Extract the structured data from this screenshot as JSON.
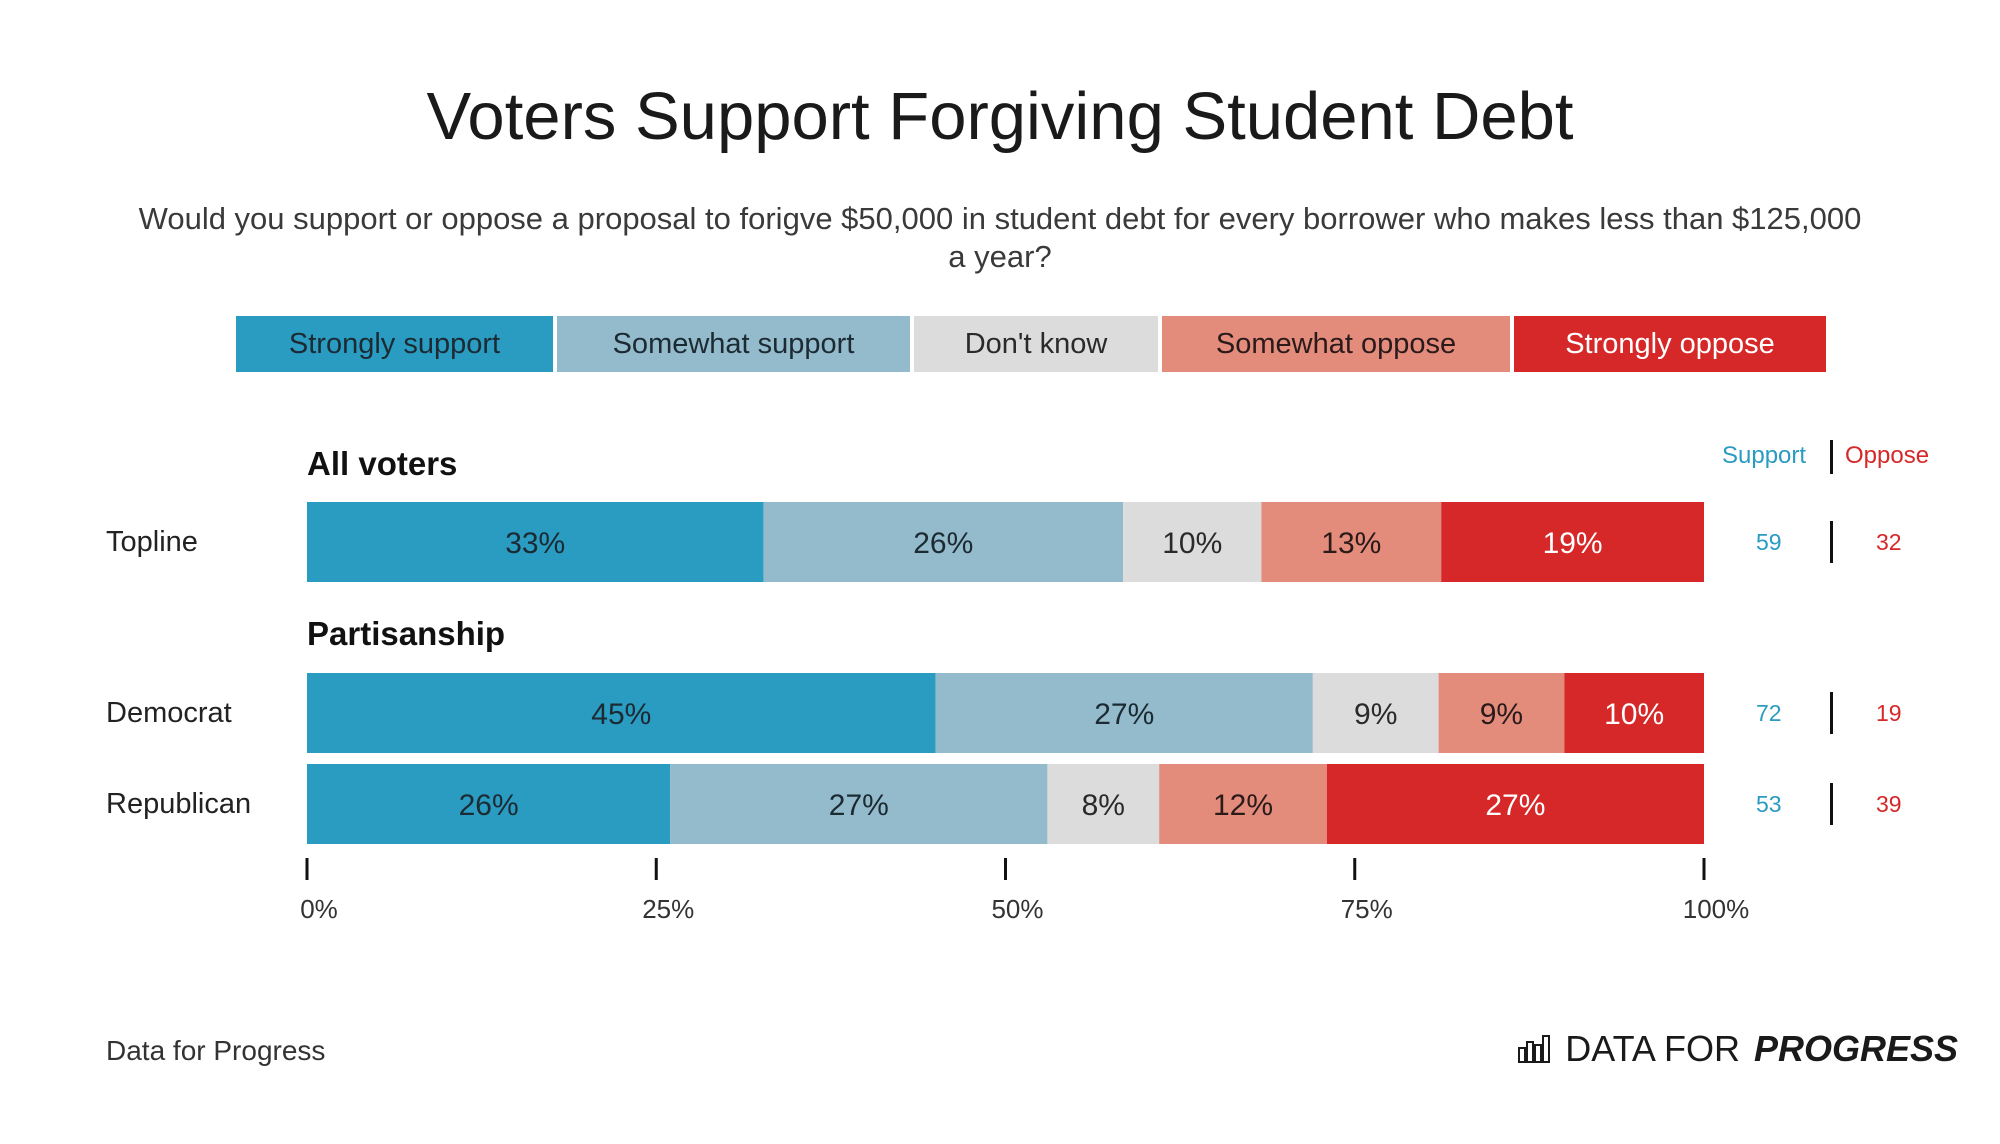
{
  "title": "Voters Support Forgiving Student Debt",
  "subtitle": "Would you support or oppose a proposal to forigve $50,000 in student debt for every borrower who makes less than $125,000 a year?",
  "legend": [
    {
      "label": "Strongly support",
      "color": "#2a9bc1",
      "text_color": "#1c2b33"
    },
    {
      "label": "Somewhat support",
      "color": "#94bbcc",
      "text_color": "#1c2b33"
    },
    {
      "label": "Don't know",
      "color": "#dcdcdc",
      "text_color": "#2a2a2a"
    },
    {
      "label": "Somewhat oppose",
      "color": "#e48c7c",
      "text_color": "#2a1a1a"
    },
    {
      "label": "Strongly oppose",
      "color": "#d62828",
      "text_color": "#ffffff"
    }
  ],
  "columns": {
    "support": "Support",
    "separator": "|",
    "oppose": "Oppose",
    "support_color": "#2a9bc1",
    "oppose_color": "#d62828"
  },
  "groups": [
    {
      "label": "All voters",
      "rows": [
        0
      ]
    },
    {
      "label": "Partisanship",
      "rows": [
        1,
        2
      ]
    }
  ],
  "chart_data": {
    "type": "bar",
    "orientation": "horizontal",
    "stacked": true,
    "categories": [
      "Topline",
      "Democrat",
      "Republican"
    ],
    "series": [
      {
        "name": "Strongly support",
        "values": [
          33,
          45,
          26
        ]
      },
      {
        "name": "Somewhat support",
        "values": [
          26,
          27,
          27
        ]
      },
      {
        "name": "Don't know",
        "values": [
          10,
          9,
          8
        ]
      },
      {
        "name": "Somewhat oppose",
        "values": [
          13,
          9,
          12
        ]
      },
      {
        "name": "Strongly oppose",
        "values": [
          19,
          10,
          27
        ]
      }
    ],
    "support_totals": [
      59,
      72,
      53
    ],
    "oppose_totals": [
      32,
      19,
      39
    ],
    "xlim": [
      0,
      100
    ],
    "xticks": [
      0,
      25,
      50,
      75,
      100
    ],
    "xtick_labels": [
      "0%",
      "25%",
      "50%",
      "75%",
      "100%"
    ],
    "value_suffix": "%"
  },
  "source": "Data for Progress",
  "brand": {
    "light": "DATA FOR",
    "bold": "PROGRESS"
  }
}
